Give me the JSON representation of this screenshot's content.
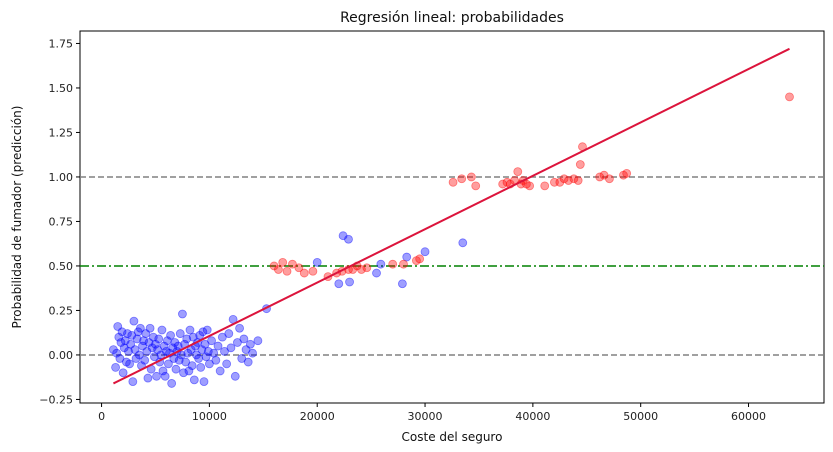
{
  "chart_data": {
    "type": "scatter",
    "title": "Regresión lineal: probabilidades",
    "xlabel": "Coste del seguro",
    "ylabel": "Probabilidad de fumador (predicción)",
    "xlim": [
      -2000,
      67000
    ],
    "ylim": [
      -0.27,
      1.82
    ],
    "x_ticks": [
      0,
      10000,
      20000,
      30000,
      40000,
      50000,
      60000
    ],
    "y_ticks": [
      -0.25,
      0.0,
      0.25,
      0.5,
      0.75,
      1.0,
      1.25,
      1.5,
      1.75
    ],
    "x_tick_labels": [
      "0",
      "10000",
      "20000",
      "30000",
      "40000",
      "50000",
      "60000"
    ],
    "y_tick_labels": [
      "−0.25",
      "0.00",
      "0.25",
      "0.50",
      "0.75",
      "1.00",
      "1.25",
      "1.50",
      "1.75"
    ],
    "grid": false,
    "reference_lines": [
      {
        "y": 0.0,
        "style": "dashed",
        "color": "#808080"
      },
      {
        "y": 1.0,
        "style": "dashed",
        "color": "#808080"
      },
      {
        "y": 0.5,
        "style": "dashdot",
        "color": "#008000"
      }
    ],
    "regression_line": {
      "x": [
        1100,
        63800
      ],
      "y": [
        -0.16,
        1.72
      ],
      "color": "#DC143C"
    },
    "series": [
      {
        "color": "#0000FF",
        "points": [
          [
            1100,
            0.03
          ],
          [
            1300,
            -0.07
          ],
          [
            1400,
            0.01
          ],
          [
            1500,
            0.16
          ],
          [
            1600,
            0.1
          ],
          [
            1700,
            -0.02
          ],
          [
            1800,
            0.07
          ],
          [
            1900,
            0.13
          ],
          [
            2000,
            -0.1
          ],
          [
            2100,
            0.04
          ],
          [
            2200,
            0.08
          ],
          [
            2300,
            -0.04
          ],
          [
            2400,
            0.12
          ],
          [
            2500,
            0.02
          ],
          [
            2600,
            -0.05
          ],
          [
            2700,
            0.06
          ],
          [
            2800,
            0.11
          ],
          [
            2900,
            -0.15
          ],
          [
            3000,
            0.19
          ],
          [
            3100,
            0.03
          ],
          [
            3200,
            -0.02
          ],
          [
            3300,
            0.09
          ],
          [
            3400,
            0.13
          ],
          [
            3500,
            0.0
          ],
          [
            3600,
            0.15
          ],
          [
            3700,
            -0.06
          ],
          [
            3800,
            0.05
          ],
          [
            3900,
            0.08
          ],
          [
            4000,
            -0.03
          ],
          [
            4100,
            0.12
          ],
          [
            4200,
            0.02
          ],
          [
            4300,
            -0.13
          ],
          [
            4400,
            0.07
          ],
          [
            4500,
            0.15
          ],
          [
            4600,
            -0.08
          ],
          [
            4700,
            0.04
          ],
          [
            4800,
            0.1
          ],
          [
            4900,
            -0.01
          ],
          [
            5000,
            0.06
          ],
          [
            5100,
            -0.12
          ],
          [
            5200,
            0.03
          ],
          [
            5300,
            0.09
          ],
          [
            5400,
            -0.04
          ],
          [
            5500,
            0.0
          ],
          [
            5600,
            0.14
          ],
          [
            5700,
            -0.09
          ],
          [
            5800,
            0.05
          ],
          [
            5900,
            -0.12
          ],
          [
            6000,
            0.02
          ],
          [
            6100,
            0.08
          ],
          [
            6200,
            -0.05
          ],
          [
            6300,
            0.01
          ],
          [
            6400,
            0.11
          ],
          [
            6500,
            -0.16
          ],
          [
            6600,
            0.04
          ],
          [
            6700,
            -0.02
          ],
          [
            6800,
            0.07
          ],
          [
            6900,
            -0.08
          ],
          [
            7000,
            0.02
          ],
          [
            7100,
            0.05
          ],
          [
            7200,
            -0.03
          ],
          [
            7300,
            0.12
          ],
          [
            7400,
            0.0
          ],
          [
            7500,
            0.23
          ],
          [
            7600,
            -0.1
          ],
          [
            7700,
            0.06
          ],
          [
            7800,
            -0.04
          ],
          [
            7900,
            0.09
          ],
          [
            8000,
            0.01
          ],
          [
            8100,
            -0.09
          ],
          [
            8200,
            0.14
          ],
          [
            8300,
            0.03
          ],
          [
            8400,
            -0.06
          ],
          [
            8500,
            0.1
          ],
          [
            8600,
            -0.14
          ],
          [
            8700,
            0.05
          ],
          [
            8800,
            0.0
          ],
          [
            8900,
            0.07
          ],
          [
            9000,
            -0.02
          ],
          [
            9100,
            0.11
          ],
          [
            9200,
            -0.07
          ],
          [
            9300,
            0.03
          ],
          [
            9400,
            0.13
          ],
          [
            9500,
            -0.15
          ],
          [
            9600,
            0.06
          ],
          [
            9700,
            -0.01
          ],
          [
            9800,
            0.14
          ],
          [
            9900,
            0.02
          ],
          [
            10000,
            -0.05
          ],
          [
            10200,
            0.08
          ],
          [
            10400,
            0.01
          ],
          [
            10600,
            -0.03
          ],
          [
            10800,
            0.05
          ],
          [
            11000,
            -0.09
          ],
          [
            11200,
            0.1
          ],
          [
            11400,
            0.02
          ],
          [
            11600,
            -0.05
          ],
          [
            11800,
            0.12
          ],
          [
            12000,
            0.04
          ],
          [
            12200,
            0.2
          ],
          [
            12400,
            -0.12
          ],
          [
            12600,
            0.07
          ],
          [
            12800,
            0.15
          ],
          [
            13000,
            -0.02
          ],
          [
            13200,
            0.09
          ],
          [
            13400,
            0.03
          ],
          [
            13600,
            -0.04
          ],
          [
            13800,
            0.06
          ],
          [
            14000,
            0.01
          ],
          [
            14500,
            0.08
          ],
          [
            15300,
            0.26
          ],
          [
            20000,
            0.52
          ],
          [
            22000,
            0.4
          ],
          [
            22400,
            0.67
          ],
          [
            22900,
            0.65
          ],
          [
            23000,
            0.41
          ],
          [
            25500,
            0.46
          ],
          [
            25900,
            0.51
          ],
          [
            27900,
            0.4
          ],
          [
            28300,
            0.55
          ],
          [
            30000,
            0.58
          ],
          [
            33500,
            0.63
          ]
        ]
      },
      {
        "color": "#FF0000",
        "points": [
          [
            16000,
            0.5
          ],
          [
            16400,
            0.48
          ],
          [
            16800,
            0.52
          ],
          [
            17200,
            0.47
          ],
          [
            17700,
            0.51
          ],
          [
            18300,
            0.49
          ],
          [
            18800,
            0.46
          ],
          [
            19600,
            0.47
          ],
          [
            21000,
            0.44
          ],
          [
            21800,
            0.46
          ],
          [
            22300,
            0.47
          ],
          [
            22900,
            0.48
          ],
          [
            23300,
            0.48
          ],
          [
            23700,
            0.5
          ],
          [
            24100,
            0.48
          ],
          [
            24600,
            0.49
          ],
          [
            27000,
            0.51
          ],
          [
            28000,
            0.51
          ],
          [
            29200,
            0.53
          ],
          [
            29500,
            0.54
          ],
          [
            32600,
            0.97
          ],
          [
            33400,
            0.99
          ],
          [
            34300,
            1.0
          ],
          [
            34700,
            0.95
          ],
          [
            37200,
            0.96
          ],
          [
            37600,
            0.97
          ],
          [
            37900,
            0.96
          ],
          [
            38300,
            0.98
          ],
          [
            38600,
            1.03
          ],
          [
            38900,
            0.96
          ],
          [
            39100,
            0.98
          ],
          [
            39400,
            0.96
          ],
          [
            39700,
            0.95
          ],
          [
            41100,
            0.95
          ],
          [
            42000,
            0.97
          ],
          [
            42500,
            0.97
          ],
          [
            42900,
            0.99
          ],
          [
            43300,
            0.98
          ],
          [
            43800,
            0.99
          ],
          [
            44200,
            0.98
          ],
          [
            44400,
            1.07
          ],
          [
            44600,
            1.17
          ],
          [
            46200,
            1.0
          ],
          [
            46600,
            1.01
          ],
          [
            47100,
            0.99
          ],
          [
            48400,
            1.01
          ],
          [
            48700,
            1.02
          ],
          [
            63800,
            1.45
          ]
        ]
      }
    ]
  }
}
